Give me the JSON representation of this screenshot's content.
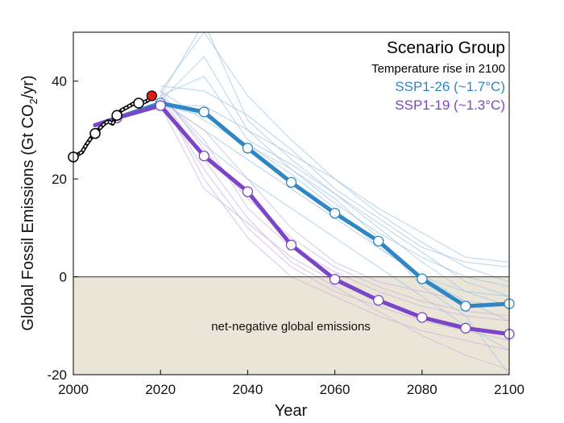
{
  "chart_data": {
    "type": "line",
    "xlabel": "Year",
    "ylabel": "Global Fossil Emissions (Gt CO",
    "ylabel_sub": "2",
    "ylabel_tail": "/yr)",
    "xlim": [
      2000,
      2100
    ],
    "ylim": [
      -20,
      50
    ],
    "xticks": [
      2000,
      2020,
      2040,
      2060,
      2080,
      2100
    ],
    "yticks": [
      -20,
      0,
      20,
      40
    ],
    "grid": false,
    "legend_placement": "top-right",
    "legend": {
      "title": "Scenario Group",
      "subtitle": "Temperature rise in 2100"
    },
    "annotation": "net-negative global emissions",
    "colors": {
      "ssp126": "#2f86c4",
      "ssp119": "#7a45c6",
      "historical": "#000000",
      "latest": "#e41b1b",
      "negative_region": "#ebe5d8",
      "ssp126_thin": "#9cc6e6",
      "ssp119_thin": "#c7b3e3"
    },
    "series": [
      {
        "name": "SSP1-26 (~1.7°C)",
        "key": "ssp126",
        "x": [
          2005,
          2010,
          2020,
          2030,
          2040,
          2050,
          2060,
          2070,
          2080,
          2090,
          2100
        ],
        "y": [
          31,
          32.5,
          35.5,
          33.7,
          26.3,
          19.3,
          13,
          7.3,
          -0.4,
          -6,
          -5.5
        ],
        "markers": [
          2010,
          2020,
          2030,
          2040,
          2050,
          2060,
          2070,
          2080,
          2090,
          2100
        ]
      },
      {
        "name": "SSP1-19 (~1.3°C)",
        "key": "ssp119",
        "x": [
          2005,
          2010,
          2020,
          2030,
          2040,
          2050,
          2060,
          2070,
          2080,
          2090,
          2100
        ],
        "y": [
          31,
          32.5,
          35,
          24.7,
          17.4,
          6.5,
          -0.5,
          -4.8,
          -8.3,
          -10.5,
          -11.7
        ],
        "markers": [
          2010,
          2020,
          2030,
          2040,
          2050,
          2060,
          2070,
          2080,
          2090,
          2100
        ]
      },
      {
        "name": "",
        "key": "historical",
        "x": [
          2000,
          2001,
          2002,
          2003,
          2004,
          2005,
          2006,
          2007,
          2008,
          2009,
          2010,
          2011,
          2012,
          2013,
          2014,
          2015,
          2016,
          2017,
          2018
        ],
        "y": [
          24.5,
          25,
          25.5,
          27,
          28.3,
          29.3,
          30.3,
          31.2,
          31.8,
          31.3,
          33,
          34,
          34.5,
          35,
          35.5,
          35.5,
          35.6,
          36,
          37
        ],
        "markers": [
          2000,
          2005,
          2010,
          2015
        ]
      }
    ],
    "latest_point": {
      "x": 2018,
      "y": 37
    },
    "thin_scenarios": [
      {
        "group": "ssp126",
        "x": [
          2020,
          2030,
          2040,
          2050,
          2060,
          2070,
          2080,
          2090,
          2100
        ],
        "y": [
          37,
          52,
          32,
          24,
          17,
          10,
          3,
          -3,
          -6
        ]
      },
      {
        "group": "ssp126",
        "x": [
          2020,
          2030,
          2040,
          2050,
          2060,
          2070,
          2080,
          2090,
          2100
        ],
        "y": [
          38,
          50,
          37,
          28,
          20,
          13,
          7,
          2,
          -1
        ]
      },
      {
        "group": "ssp126",
        "x": [
          2020,
          2030,
          2040,
          2050,
          2060,
          2070,
          2080,
          2090,
          2100
        ],
        "y": [
          36,
          45,
          30,
          22,
          15,
          9,
          4,
          0,
          -2
        ]
      },
      {
        "group": "ssp126",
        "x": [
          2020,
          2030,
          2040,
          2050,
          2060,
          2070,
          2080,
          2090,
          2100
        ],
        "y": [
          37,
          41,
          28,
          23,
          17,
          11,
          5,
          -1,
          -4
        ]
      },
      {
        "group": "ssp126",
        "x": [
          2020,
          2030,
          2040,
          2050,
          2060,
          2070,
          2080,
          2090,
          2100
        ],
        "y": [
          39,
          38,
          33,
          26,
          18,
          12,
          6,
          3,
          2
        ]
      },
      {
        "group": "ssp126",
        "x": [
          2020,
          2030,
          2040,
          2050,
          2060,
          2070,
          2080,
          2090,
          2100
        ],
        "y": [
          35,
          35,
          30,
          25,
          20,
          14,
          9,
          4,
          3
        ]
      },
      {
        "group": "ssp126",
        "x": [
          2020,
          2030,
          2040,
          2050,
          2060,
          2070,
          2080,
          2090,
          2100
        ],
        "y": [
          36,
          30,
          24,
          18,
          12,
          6,
          0,
          -5,
          -9
        ]
      },
      {
        "group": "ssp126",
        "x": [
          2020,
          2030,
          2040,
          2050,
          2060,
          2070,
          2080,
          2090,
          2100
        ],
        "y": [
          37,
          27,
          20,
          14,
          8,
          2,
          -4,
          -10,
          -15
        ]
      },
      {
        "group": "ssp126",
        "x": [
          2020,
          2030,
          2040,
          2050,
          2060,
          2070,
          2080,
          2090,
          2100
        ],
        "y": [
          38,
          32,
          27,
          22,
          16,
          8,
          -2,
          -8,
          -20
        ]
      },
      {
        "group": "ssp126",
        "x": [
          2020,
          2030,
          2040,
          2050,
          2060,
          2070,
          2080,
          2090,
          2100
        ],
        "y": [
          35,
          33,
          27,
          21,
          14,
          6,
          0,
          -3,
          -4
        ]
      },
      {
        "group": "ssp119",
        "x": [
          2020,
          2030,
          2040,
          2050,
          2060,
          2070,
          2080,
          2090,
          2100
        ],
        "y": [
          37,
          28,
          14,
          6,
          1,
          -3,
          -6,
          -8,
          -9
        ]
      },
      {
        "group": "ssp119",
        "x": [
          2020,
          2030,
          2040,
          2050,
          2060,
          2070,
          2080,
          2090,
          2100
        ],
        "y": [
          36,
          22,
          10,
          2,
          -3,
          -6,
          -9,
          -11,
          -13
        ]
      },
      {
        "group": "ssp119",
        "x": [
          2020,
          2030,
          2040,
          2050,
          2060,
          2070,
          2080,
          2090,
          2100
        ],
        "y": [
          37,
          20,
          8,
          0,
          -4,
          -8,
          -11,
          -13,
          -15
        ]
      },
      {
        "group": "ssp119",
        "x": [
          2020,
          2030,
          2040,
          2050,
          2060,
          2070,
          2080,
          2090,
          2100
        ],
        "y": [
          38,
          26,
          16,
          8,
          2,
          -2,
          -5,
          -7,
          -8
        ]
      },
      {
        "group": "ssp119",
        "x": [
          2020,
          2030,
          2040,
          2050,
          2060,
          2070,
          2080,
          2090,
          2100
        ],
        "y": [
          35,
          18,
          11,
          4,
          -1,
          -5,
          -8,
          -10,
          -12
        ]
      },
      {
        "group": "ssp119",
        "x": [
          2020,
          2030,
          2040,
          2050,
          2060,
          2070,
          2080,
          2090,
          2100
        ],
        "y": [
          36,
          30,
          20,
          10,
          3,
          -1,
          -3,
          -5,
          -6
        ]
      },
      {
        "group": "ssp119",
        "x": [
          2020,
          2030,
          2040,
          2050,
          2060,
          2070,
          2080,
          2090,
          2100
        ],
        "y": [
          37,
          24,
          12,
          3,
          -2,
          -7,
          -12,
          -16,
          -19
        ]
      }
    ]
  }
}
